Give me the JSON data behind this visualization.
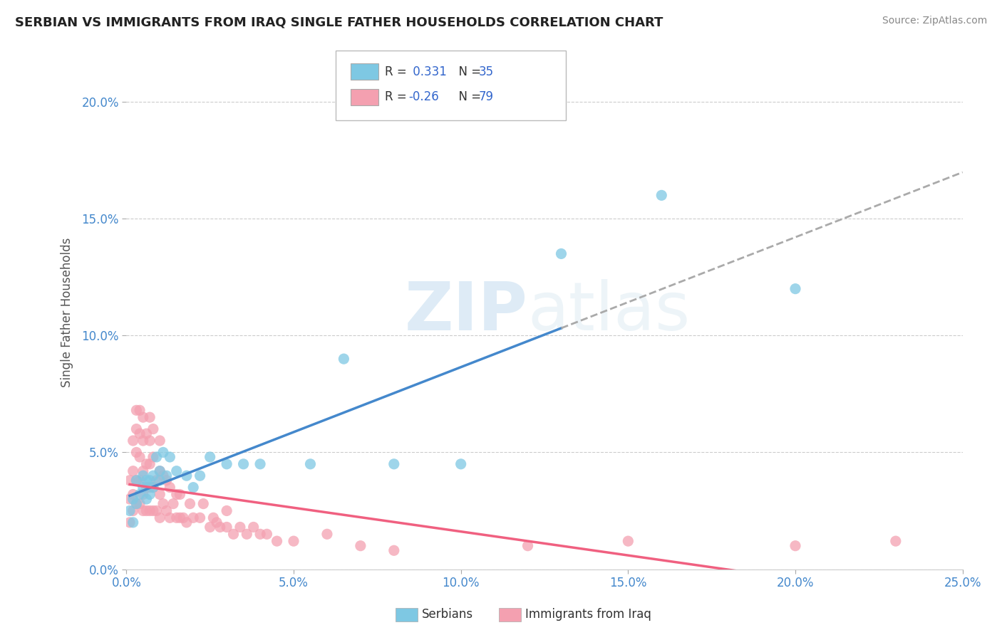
{
  "title": "SERBIAN VS IMMIGRANTS FROM IRAQ SINGLE FATHER HOUSEHOLDS CORRELATION CHART",
  "source": "Source: ZipAtlas.com",
  "ylabel_label": "Single Father Households",
  "xlim": [
    0.0,
    0.25
  ],
  "ylim": [
    0.0,
    0.22
  ],
  "serbian_R": 0.331,
  "serbian_N": 35,
  "iraq_R": -0.26,
  "iraq_N": 79,
  "serbian_color": "#7ec8e3",
  "iraq_color": "#f4a0b0",
  "serbian_line_color": "#4488cc",
  "iraq_line_color": "#f06080",
  "trendline_dashed_color": "#aaaaaa",
  "legend_serbian_label": "Serbians",
  "legend_iraq_label": "Immigrants from Iraq",
  "watermark_zip": "ZIP",
  "watermark_atlas": "atlas",
  "serbian_x": [
    0.001,
    0.002,
    0.002,
    0.003,
    0.003,
    0.004,
    0.005,
    0.005,
    0.006,
    0.006,
    0.007,
    0.007,
    0.008,
    0.008,
    0.009,
    0.01,
    0.01,
    0.011,
    0.012,
    0.013,
    0.015,
    0.018,
    0.02,
    0.022,
    0.025,
    0.03,
    0.035,
    0.04,
    0.055,
    0.065,
    0.08,
    0.1,
    0.13,
    0.16,
    0.2
  ],
  "serbian_y": [
    0.025,
    0.02,
    0.03,
    0.028,
    0.038,
    0.032,
    0.035,
    0.04,
    0.03,
    0.038,
    0.032,
    0.038,
    0.035,
    0.04,
    0.048,
    0.038,
    0.042,
    0.05,
    0.04,
    0.048,
    0.042,
    0.04,
    0.035,
    0.04,
    0.048,
    0.045,
    0.045,
    0.045,
    0.045,
    0.09,
    0.045,
    0.045,
    0.135,
    0.16,
    0.12
  ],
  "iraq_x": [
    0.001,
    0.001,
    0.001,
    0.002,
    0.002,
    0.002,
    0.002,
    0.003,
    0.003,
    0.003,
    0.003,
    0.003,
    0.004,
    0.004,
    0.004,
    0.004,
    0.004,
    0.005,
    0.005,
    0.005,
    0.005,
    0.005,
    0.006,
    0.006,
    0.006,
    0.006,
    0.007,
    0.007,
    0.007,
    0.007,
    0.007,
    0.008,
    0.008,
    0.008,
    0.008,
    0.009,
    0.009,
    0.01,
    0.01,
    0.01,
    0.01,
    0.011,
    0.011,
    0.012,
    0.012,
    0.013,
    0.013,
    0.014,
    0.015,
    0.015,
    0.016,
    0.016,
    0.017,
    0.018,
    0.019,
    0.02,
    0.022,
    0.023,
    0.025,
    0.026,
    0.027,
    0.028,
    0.03,
    0.03,
    0.032,
    0.034,
    0.036,
    0.038,
    0.04,
    0.042,
    0.045,
    0.05,
    0.06,
    0.07,
    0.08,
    0.12,
    0.15,
    0.2,
    0.23
  ],
  "iraq_y": [
    0.02,
    0.03,
    0.038,
    0.025,
    0.032,
    0.042,
    0.055,
    0.028,
    0.038,
    0.05,
    0.06,
    0.068,
    0.028,
    0.038,
    0.048,
    0.058,
    0.068,
    0.025,
    0.032,
    0.042,
    0.055,
    0.065,
    0.025,
    0.035,
    0.045,
    0.058,
    0.025,
    0.035,
    0.045,
    0.055,
    0.065,
    0.025,
    0.035,
    0.048,
    0.06,
    0.025,
    0.038,
    0.022,
    0.032,
    0.042,
    0.055,
    0.028,
    0.04,
    0.025,
    0.038,
    0.022,
    0.035,
    0.028,
    0.022,
    0.032,
    0.022,
    0.032,
    0.022,
    0.02,
    0.028,
    0.022,
    0.022,
    0.028,
    0.018,
    0.022,
    0.02,
    0.018,
    0.018,
    0.025,
    0.015,
    0.018,
    0.015,
    0.018,
    0.015,
    0.015,
    0.012,
    0.012,
    0.015,
    0.01,
    0.008,
    0.01,
    0.012,
    0.01,
    0.012
  ]
}
